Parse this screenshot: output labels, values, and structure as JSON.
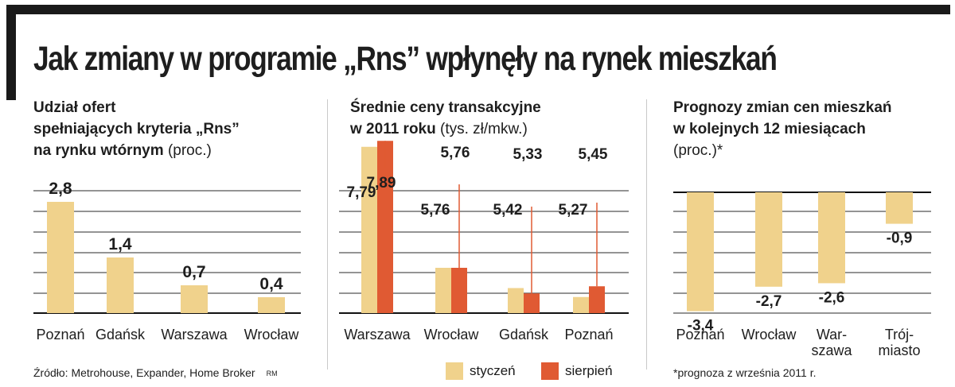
{
  "title": "Jak zmiany w programie „Rns” wpłynęły na rynek mieszkań",
  "panels": [
    {
      "title_lines": [
        "Udział ofert",
        "spełniających kryteria „Rns”",
        "na rynku wtórnym"
      ],
      "unit": "(proc.)"
    },
    {
      "title_lines": [
        "Średnie ceny transakcyjne",
        "w 2011 roku"
      ],
      "unit": "(tys. zł/mkw.)"
    },
    {
      "title_lines": [
        "Prognozy zmian cen mieszkań",
        "w kolejnych 12 miesiącach"
      ],
      "unit": "(proc.)*"
    }
  ],
  "legend": [
    {
      "label": "styczeń",
      "color": "#f0d28c"
    },
    {
      "label": "sierpień",
      "color": "#e05a33"
    }
  ],
  "source": "Źródło: Metrohouse, Expander, Home Broker",
  "source_mark": "RM",
  "footnote": "*prognoza z września 2011 r.",
  "colors": {
    "bar_light": "#f0d28c",
    "bar_dark": "#e05a33",
    "grid": "#555555",
    "axis": "#111111"
  },
  "chart_data": [
    {
      "type": "bar",
      "title": "Udział ofert spełniających kryteria „Rns” na rynku wtórnym (proc.)",
      "categories": [
        "Poznań",
        "Gdańsk",
        "Warszawa",
        "Wrocław"
      ],
      "values": [
        2.8,
        1.4,
        0.7,
        0.4
      ],
      "value_labels": [
        "2,8",
        "1,4",
        "0,7",
        "0,4"
      ],
      "ylim": [
        0,
        3
      ]
    },
    {
      "type": "bar",
      "title": "Średnie ceny transakcyjne w 2011 roku (tys. zł/mkw.)",
      "categories": [
        "Warszawa",
        "Wrocław",
        "Gdańsk",
        "Poznań"
      ],
      "series": [
        {
          "name": "styczeń",
          "values": [
            7.79,
            5.76,
            5.42,
            5.27
          ],
          "labels": [
            "7,79",
            "5,76",
            "5,42",
            "5,27"
          ]
        },
        {
          "name": "sierpień",
          "values": [
            7.89,
            5.76,
            5.33,
            5.45
          ],
          "labels": [
            "7,89",
            "5,76",
            "5,33",
            "5,45"
          ]
        }
      ]
    },
    {
      "type": "bar",
      "title": "Prognozy zmian cen mieszkań w kolejnych 12 miesiącach (proc.)*",
      "categories": [
        "Poznań",
        "Wrocław",
        "Warszawa",
        "Trójmiasto"
      ],
      "category_lines": [
        [
          "Poznań"
        ],
        [
          "Wrocław"
        ],
        [
          "War-",
          "szawa"
        ],
        [
          "Trój-",
          "miasto"
        ]
      ],
      "values": [
        -3.4,
        -2.7,
        -2.6,
        -0.9
      ],
      "value_labels": [
        "-3,4",
        "-2,7",
        "-2,6",
        "-0,9"
      ],
      "ylim": [
        -3.4,
        0
      ]
    }
  ]
}
